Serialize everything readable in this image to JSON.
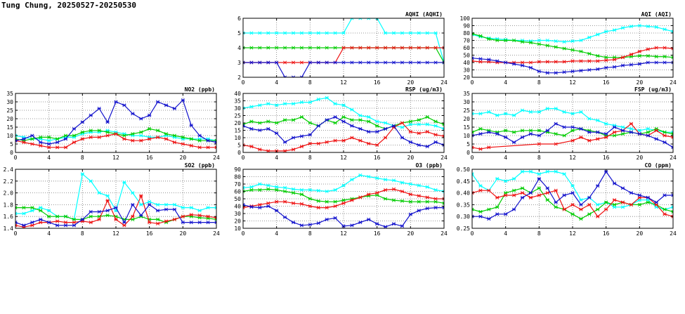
{
  "title": "Tung Chung, 20250527-20250530",
  "colors": {
    "day1": "#00ffff",
    "day2": "#00cc00",
    "day3": "#ee1111",
    "day4": "#1111cc"
  },
  "chart_data": [
    {
      "id": "no2",
      "type": "line",
      "title": "NO2 (ppb)",
      "ylim": [
        0,
        35
      ],
      "yticks": [
        0,
        5,
        10,
        15,
        20,
        25,
        30,
        35
      ],
      "xlim": [
        0,
        24
      ],
      "xticks": [
        0,
        4,
        8,
        12,
        16,
        20,
        24
      ],
      "grid": true,
      "series": [
        {
          "values": [
            10,
            9,
            8,
            8,
            7,
            8,
            9,
            9,
            11,
            12,
            12,
            13,
            12,
            11,
            10,
            10,
            9,
            9,
            10,
            9,
            8,
            8,
            8,
            8,
            7
          ]
        },
        {
          "values": [
            8,
            7,
            8,
            9,
            9,
            8,
            10,
            10,
            12,
            13,
            13,
            12,
            11,
            10,
            11,
            12,
            14,
            13,
            11,
            10,
            9,
            8,
            7,
            7,
            7
          ]
        },
        {
          "values": [
            7,
            6,
            5,
            4,
            3,
            3,
            3,
            6,
            8,
            9,
            9,
            10,
            11,
            8,
            7,
            7,
            8,
            9,
            8,
            6,
            5,
            4,
            3,
            3,
            3
          ]
        },
        {
          "values": [
            7,
            8,
            10,
            6,
            5,
            6,
            8,
            14,
            18,
            22,
            26,
            18,
            30,
            28,
            23,
            20,
            22,
            30,
            28,
            26,
            31,
            16,
            10,
            7,
            6
          ]
        }
      ]
    },
    {
      "id": "so2",
      "type": "line",
      "title": "SO2 (ppb)",
      "ylim": [
        1.4,
        2.4
      ],
      "yticks": [
        1.4,
        1.6,
        1.8,
        2.0,
        2.2,
        2.4
      ],
      "ytick_labels": [
        "1.4",
        "1.6",
        "1.8",
        "2.0",
        "2.2",
        "2.4"
      ],
      "xlim": [
        0,
        24
      ],
      "xticks": [
        0,
        4,
        8,
        12,
        16,
        20,
        24
      ],
      "grid": true,
      "series": [
        {
          "values": [
            1.65,
            1.65,
            1.7,
            1.75,
            1.7,
            1.6,
            1.6,
            1.55,
            2.32,
            2.2,
            2.0,
            1.95,
            1.7,
            2.18,
            2.0,
            1.8,
            1.85,
            1.8,
            1.8,
            1.8,
            1.75,
            1.75,
            1.7,
            1.75,
            1.75
          ]
        },
        {
          "values": [
            1.75,
            1.75,
            1.75,
            1.7,
            1.6,
            1.6,
            1.6,
            1.55,
            1.55,
            1.6,
            1.6,
            1.62,
            1.6,
            1.55,
            1.55,
            1.6,
            1.55,
            1.55,
            1.5,
            1.55,
            1.6,
            1.6,
            1.58,
            1.57,
            1.55
          ]
        },
        {
          "values": [
            1.45,
            1.42,
            1.45,
            1.5,
            1.5,
            1.52,
            1.5,
            1.5,
            1.52,
            1.5,
            1.55,
            1.87,
            1.55,
            1.45,
            1.6,
            1.95,
            1.5,
            1.48,
            1.52,
            1.55,
            1.6,
            1.63,
            1.62,
            1.6,
            1.58
          ]
        },
        {
          "values": [
            1.5,
            1.45,
            1.5,
            1.55,
            1.5,
            1.45,
            1.45,
            1.45,
            1.55,
            1.68,
            1.68,
            1.7,
            1.75,
            1.5,
            1.8,
            1.62,
            1.8,
            1.7,
            1.72,
            1.72,
            1.5,
            1.5,
            1.5,
            1.5,
            1.5
          ]
        }
      ]
    },
    {
      "id": "aqhi",
      "type": "line",
      "title": "AQHI (AQHI)",
      "ylim": [
        2,
        6
      ],
      "yticks": [
        2,
        3,
        4,
        5,
        6
      ],
      "xlim": [
        0,
        24
      ],
      "xticks": [
        0,
        4,
        8,
        12,
        16,
        20,
        24
      ],
      "grid": true,
      "series": [
        {
          "values": [
            5,
            5,
            5,
            5,
            5,
            5,
            5,
            5,
            5,
            5,
            5,
            5,
            5,
            6,
            6,
            6,
            6,
            5,
            5,
            5,
            5,
            5,
            5,
            5,
            3
          ]
        },
        {
          "values": [
            4,
            4,
            4,
            4,
            4,
            4,
            4,
            4,
            4,
            4,
            4,
            4,
            4,
            4,
            4,
            4,
            4,
            4,
            4,
            4,
            4,
            4,
            4,
            4,
            3
          ]
        },
        {
          "values": [
            3,
            3,
            3,
            3,
            3,
            3,
            3,
            3,
            3,
            3,
            3,
            3,
            4,
            4,
            4,
            4,
            4,
            4,
            4,
            4,
            4,
            4,
            4,
            4,
            4
          ]
        },
        {
          "values": [
            3,
            3,
            3,
            3,
            3,
            2,
            2,
            2,
            3,
            3,
            3,
            3,
            3,
            3,
            3,
            3,
            3,
            3,
            3,
            3,
            3,
            3,
            3,
            3,
            3
          ]
        }
      ]
    },
    {
      "id": "rsp",
      "type": "line",
      "title": "RSP (ug/m3)",
      "ylim": [
        0,
        40
      ],
      "yticks": [
        0,
        5,
        10,
        15,
        20,
        25,
        30,
        35,
        40
      ],
      "xlim": [
        0,
        24
      ],
      "xticks": [
        0,
        4,
        8,
        12,
        16,
        20,
        24
      ],
      "grid": true,
      "series": [
        {
          "values": [
            30,
            31,
            32,
            33,
            32,
            33,
            33,
            34,
            34,
            36,
            37,
            33,
            32,
            29,
            25,
            24,
            21,
            20,
            18,
            17,
            19,
            19,
            19,
            18,
            16
          ]
        },
        {
          "values": [
            19,
            21,
            20,
            21,
            20,
            22,
            22,
            24,
            20,
            18,
            22,
            20,
            24,
            22,
            22,
            21,
            18,
            16,
            18,
            20,
            21,
            22,
            24,
            21,
            19
          ]
        },
        {
          "values": [
            5,
            4,
            2,
            1,
            1,
            1,
            2,
            4,
            6,
            6,
            7,
            8,
            8,
            10,
            8,
            6,
            5,
            10,
            17,
            20,
            14,
            13,
            14,
            12,
            11
          ]
        },
        {
          "values": [
            18,
            16,
            15,
            16,
            13,
            7,
            10,
            11,
            12,
            18,
            22,
            24,
            21,
            18,
            16,
            14,
            14,
            16,
            18,
            10,
            7,
            5,
            4,
            7,
            5
          ]
        }
      ]
    },
    {
      "id": "o3",
      "type": "line",
      "title": "O3 (ppb)",
      "ylim": [
        10,
        90
      ],
      "yticks": [
        10,
        20,
        30,
        40,
        50,
        60,
        70,
        80,
        90
      ],
      "xlim": [
        0,
        24
      ],
      "xticks": [
        0,
        4,
        8,
        12,
        16,
        20,
        24
      ],
      "grid": true,
      "series": [
        {
          "values": [
            65,
            66,
            70,
            68,
            66,
            65,
            63,
            62,
            62,
            61,
            60,
            62,
            68,
            76,
            82,
            80,
            78,
            76,
            75,
            72,
            70,
            68,
            66,
            62,
            60
          ]
        },
        {
          "values": [
            60,
            62,
            62,
            63,
            62,
            60,
            58,
            56,
            50,
            47,
            46,
            46,
            48,
            50,
            52,
            54,
            55,
            50,
            48,
            47,
            46,
            46,
            46,
            46,
            44
          ]
        },
        {
          "values": [
            38,
            40,
            42,
            44,
            46,
            46,
            44,
            43,
            40,
            38,
            38,
            40,
            44,
            48,
            52,
            56,
            58,
            62,
            63,
            60,
            56,
            54,
            52,
            50,
            50
          ]
        },
        {
          "values": [
            42,
            39,
            38,
            40,
            34,
            25,
            18,
            14,
            15,
            17,
            22,
            24,
            13,
            14,
            18,
            22,
            16,
            12,
            16,
            13,
            29,
            34,
            37,
            38,
            38
          ]
        }
      ]
    },
    {
      "id": "aqi",
      "type": "line",
      "title": "AQI (AQI)",
      "ylim": [
        20,
        100
      ],
      "yticks": [
        20,
        30,
        40,
        50,
        60,
        70,
        80,
        90,
        100
      ],
      "xlim": [
        0,
        24
      ],
      "xticks": [
        0,
        4,
        8,
        12,
        16,
        20,
        24
      ],
      "grid": true,
      "series": [
        {
          "values": [
            78,
            75,
            73,
            72,
            71,
            70,
            70,
            69,
            70,
            70,
            69,
            68,
            69,
            70,
            74,
            78,
            82,
            84,
            87,
            89,
            90,
            89,
            88,
            85,
            82
          ]
        },
        {
          "values": [
            79,
            76,
            72,
            70,
            70,
            70,
            68,
            67,
            65,
            63,
            61,
            59,
            57,
            55,
            52,
            49,
            47,
            47,
            47,
            48,
            49,
            49,
            48,
            48,
            47
          ]
        },
        {
          "values": [
            42,
            41,
            41,
            40,
            40,
            40,
            40,
            40,
            41,
            41,
            41,
            41,
            42,
            42,
            42,
            42,
            43,
            44,
            47,
            51,
            55,
            58,
            60,
            60,
            59
          ]
        },
        {
          "values": [
            46,
            45,
            44,
            42,
            40,
            38,
            36,
            33,
            28,
            26,
            26,
            27,
            28,
            29,
            30,
            31,
            33,
            34,
            36,
            37,
            38,
            40,
            40,
            40,
            40
          ]
        }
      ]
    },
    {
      "id": "fsp",
      "type": "line",
      "title": "FSP (ug/m3)",
      "ylim": [
        0,
        35
      ],
      "yticks": [
        0,
        5,
        10,
        15,
        20,
        25,
        30,
        35
      ],
      "xlim": [
        0,
        24
      ],
      "xticks": [
        0,
        4,
        8,
        12,
        16,
        20,
        24
      ],
      "grid": true,
      "series": [
        {
          "values": [
            23,
            23,
            24,
            22,
            23,
            22,
            25,
            24,
            24,
            26,
            26,
            24,
            23,
            24,
            20,
            19,
            17,
            16,
            15,
            14,
            13,
            14,
            13,
            12,
            12
          ]
        },
        {
          "values": [
            12,
            14,
            13,
            12,
            13,
            12,
            13,
            13,
            13,
            12,
            11,
            10,
            13,
            14,
            13,
            12,
            10,
            10,
            11,
            12,
            11,
            12,
            14,
            12,
            11
          ]
        },
        {
          "values": [
            3,
            2,
            3,
            null,
            null,
            null,
            null,
            null,
            5,
            null,
            5,
            null,
            7,
            9,
            7,
            8,
            9,
            12,
            13,
            17,
            11,
            10,
            13,
            10,
            9
          ]
        },
        {
          "values": [
            10,
            11,
            12,
            11,
            9,
            6,
            9,
            11,
            10,
            13,
            17,
            15,
            15,
            14,
            12,
            12,
            11,
            15,
            13,
            12,
            11,
            10,
            8,
            6,
            3
          ]
        }
      ]
    },
    {
      "id": "co",
      "type": "line",
      "title": "CO (ppm)",
      "ylim": [
        0.25,
        0.5
      ],
      "yticks": [
        0.25,
        0.3,
        0.35,
        0.4,
        0.45,
        0.5
      ],
      "ytick_labels": [
        "0.25",
        "0.30",
        "0.35",
        "0.40",
        "0.45",
        "0.50"
      ],
      "xlim": [
        0,
        24
      ],
      "xticks": [
        0,
        4,
        8,
        12,
        16,
        20,
        24
      ],
      "grid": true,
      "series": [
        {
          "values": [
            0.48,
            0.43,
            0.41,
            0.46,
            0.45,
            0.46,
            0.49,
            0.49,
            0.48,
            0.49,
            0.49,
            0.48,
            0.43,
            0.37,
            0.38,
            0.35,
            0.36,
            0.34,
            0.34,
            0.35,
            0.37,
            0.37,
            0.34,
            0.33,
            0.34
          ]
        },
        {
          "values": [
            0.33,
            0.32,
            0.33,
            0.34,
            0.4,
            0.41,
            0.42,
            0.4,
            0.42,
            0.37,
            0.34,
            0.33,
            0.31,
            0.29,
            0.31,
            0.33,
            0.36,
            0.35,
            0.36,
            0.35,
            0.35,
            0.36,
            0.35,
            0.33,
            0.32
          ]
        },
        {
          "values": [
            0.4,
            0.41,
            0.41,
            0.38,
            0.39,
            0.39,
            0.4,
            0.38,
            0.39,
            0.4,
            0.41,
            0.33,
            0.35,
            0.33,
            0.35,
            0.3,
            0.33,
            0.37,
            0.36,
            0.35,
            0.38,
            0.38,
            0.35,
            0.31,
            0.3
          ]
        },
        {
          "values": [
            0.3,
            0.3,
            0.29,
            0.31,
            0.31,
            0.33,
            0.38,
            0.4,
            0.46,
            0.42,
            0.36,
            0.39,
            0.4,
            0.35,
            0.38,
            0.43,
            0.49,
            0.44,
            0.42,
            0.4,
            0.39,
            0.38,
            0.36,
            0.39,
            0.39
          ]
        }
      ]
    }
  ]
}
